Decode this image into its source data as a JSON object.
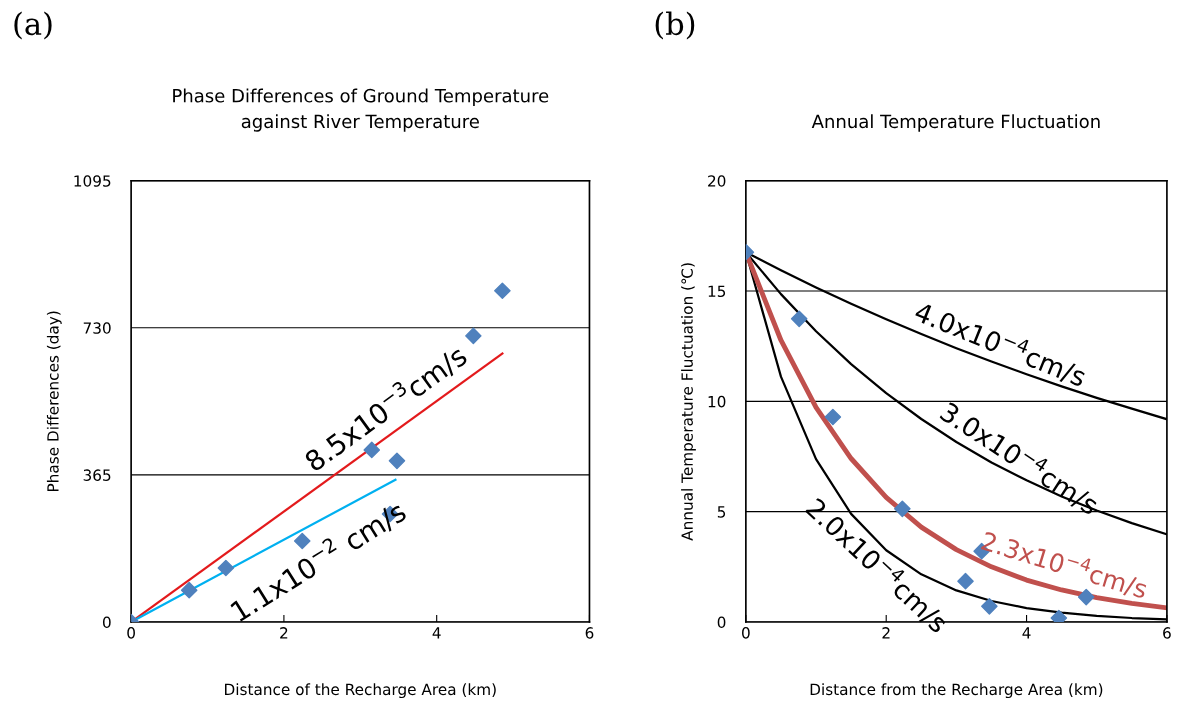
{
  "chart_data": [
    {
      "type": "scatter",
      "title": "Phase Differences of Ground Temperature\nagainst River Temperature",
      "xlabel": "Distance of the Recharge Area (km)",
      "ylabel": "Phase Differences (day)",
      "xlim": [
        0,
        6
      ],
      "xticks": [
        0,
        2,
        4,
        6
      ],
      "ylim": [
        0,
        1095
      ],
      "yticks": [
        0,
        365,
        730,
        1095
      ],
      "grid": "y",
      "series": [
        {
          "type": "line",
          "color": "#e31a1c",
          "x": [
            0,
            4.86
          ],
          "values": [
            0,
            666
          ]
        },
        {
          "type": "line",
          "color": "#00b0f0",
          "x": [
            0,
            3.46
          ],
          "values": [
            0,
            353
          ]
        },
        {
          "color": "#4f81bd",
          "marker": "diamond",
          "x": [
            0,
            0.76,
            1.24,
            2.24,
            3.15,
            3.48,
            3.39,
            4.48,
            4.86
          ],
          "values": [
            0,
            79,
            134,
            201,
            427,
            400,
            268,
            710,
            822
          ]
        }
      ],
      "annotations": [
        "(a)",
        "8.5x10$^{−3}$cm/s",
        "1.1x10$^{−2}$ cm/s"
      ]
    },
    {
      "type": "line",
      "title": "Annual Temperature Fluctuation",
      "xlabel": "Distance from the Recharge Area (km)",
      "ylabel": "Annual Temperature Fluctuation (℃)",
      "xlim": [
        0,
        6
      ],
      "xticks": [
        0,
        2,
        4,
        6
      ],
      "ylim": [
        0,
        20
      ],
      "yticks": [
        0,
        5,
        10,
        15,
        20
      ],
      "grid": "y",
      "x": [
        0,
        0.5,
        1,
        1.5,
        2,
        2.5,
        3,
        3.5,
        4,
        4.5,
        5,
        5.5,
        6
      ],
      "series": [
        {
          "color": "#000000",
          "values": [
            16.76,
            15.94,
            15.16,
            14.42,
            13.72,
            13.05,
            12.41,
            11.81,
            11.23,
            10.68,
            10.16,
            9.67,
            9.19
          ]
        },
        {
          "color": "#000000",
          "values": [
            16.76,
            14.86,
            13.18,
            11.69,
            10.37,
            9.2,
            8.16,
            7.23,
            6.42,
            5.69,
            5.05,
            4.48,
            3.97
          ]
        },
        {
          "color": "#000000",
          "values": [
            16.76,
            11.12,
            7.38,
            4.9,
            3.25,
            2.16,
            1.43,
            0.95,
            0.63,
            0.42,
            0.28,
            0.18,
            0.12
          ]
        },
        {
          "color": "#c0504d",
          "values": [
            16.76,
            12.77,
            9.73,
            7.41,
            5.65,
            4.3,
            3.28,
            2.5,
            1.9,
            1.45,
            1.1,
            0.84,
            0.64
          ]
        },
        {
          "type": "scatter",
          "marker": "diamond",
          "color": "#4f81bd",
          "x": [
            0,
            0.76,
            1.24,
            2.23,
            3.36,
            3.13,
            3.47,
            4.46,
            4.85
          ],
          "values": [
            16.76,
            13.74,
            9.29,
            5.13,
            3.21,
            1.85,
            0.71,
            0.18,
            1.13
          ]
        }
      ],
      "annotations": [
        "(b)",
        "4.0x10$^{−4}$cm/s",
        "3.0x10$^{−4}$cm/s",
        "2.0x10$^{−4}$cm/s",
        "2.3x10$^{−4}$cm/s"
      ]
    }
  ]
}
